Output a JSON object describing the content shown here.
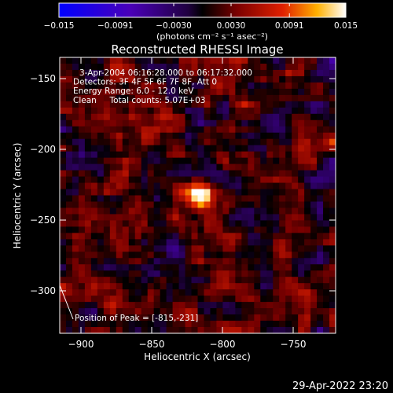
{
  "chart_data": {
    "type": "heatmap",
    "title": "Reconstructed RHESSI Image",
    "xlabel": "Heliocentric X (arcsec)",
    "ylabel": "Heliocentric Y (arcsec)",
    "xlim": [
      -915,
      -720
    ],
    "ylim": [
      -330,
      -135
    ],
    "x_ticks": [
      -900,
      -850,
      -800,
      -750
    ],
    "x_tick_labels": [
      "−900",
      "−850",
      "−800",
      "−750"
    ],
    "y_ticks": [
      -300,
      -250,
      -200,
      -150
    ],
    "y_tick_labels": [
      "−300",
      "−250",
      "−200",
      "−150"
    ],
    "colorbar": {
      "range": [
        -0.015,
        0.015
      ],
      "ticks": [
        -0.015,
        -0.0091,
        -0.003,
        0.003,
        0.0091,
        0.015
      ],
      "tick_labels": [
        "−0.015",
        "−0.0091",
        "−0.0030",
        "0.0030",
        "0.0091",
        "0.015"
      ],
      "unit_label": "(photons cm⁻² s⁻¹ asec⁻²)",
      "colors": [
        "#0000ff",
        "#4a00b8",
        "#200040",
        "#000000",
        "#7a0000",
        "#e02000",
        "#ffb000",
        "#ffffff"
      ]
    },
    "annotations": [
      "3-Apr-2004 06:16:28.000 to 06:17:32.000",
      "Detectors: 3F 4F 5F 6F 7F 8F, Att 0",
      "Energy Range: 6.0 - 12.0 keV",
      "Clean     Total counts: 5.07E+03"
    ],
    "peak": {
      "label": "Position of Peak = [-815,-231]",
      "x": -815,
      "y": -231,
      "value": 0.015
    },
    "grid": false
  },
  "footer": {
    "timestamp": "29-Apr-2022 23:20"
  }
}
